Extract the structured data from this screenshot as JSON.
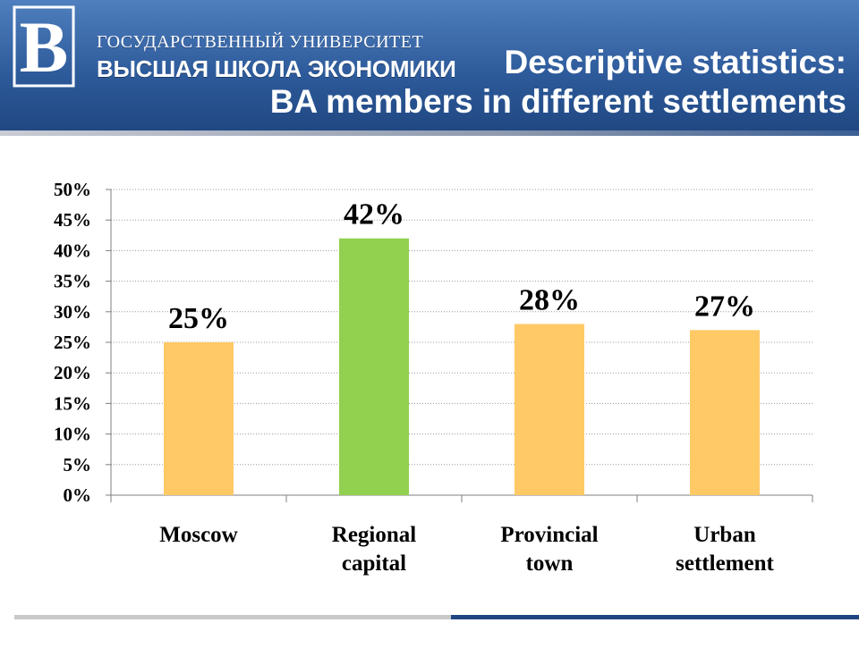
{
  "header": {
    "university_line1": "ГОСУДАРСТВЕННЫЙ УНИВЕРСИТЕТ",
    "university_line2": "ВЫСШАЯ ШКОЛА ЭКОНОМИКИ",
    "title_line1": "Descriptive statistics:",
    "title_line2": "BA members in different settlements",
    "logo_mark": "B"
  },
  "colors": {
    "bar_default": "#ffc966",
    "bar_highlight": "#92d050",
    "header_blue": "#2d5a9a",
    "footer_blue": "#1f4680"
  },
  "chart_data": {
    "type": "bar",
    "categories": [
      [
        "Moscow"
      ],
      [
        "Regional",
        "capital"
      ],
      [
        "Provincial",
        "town"
      ],
      [
        "Urban",
        "settlement"
      ]
    ],
    "values": [
      25,
      42,
      28,
      27
    ],
    "data_labels": [
      "25%",
      "42%",
      "28%",
      "27%"
    ],
    "highlight_index": 1,
    "ylim": [
      0,
      50
    ],
    "y_ticks": [
      "0%",
      "5%",
      "10%",
      "15%",
      "20%",
      "25%",
      "30%",
      "35%",
      "40%",
      "45%",
      "50%"
    ],
    "grid": true,
    "gridline_style": "dotted",
    "legend": "none",
    "title": "",
    "xlabel": "",
    "ylabel": ""
  }
}
